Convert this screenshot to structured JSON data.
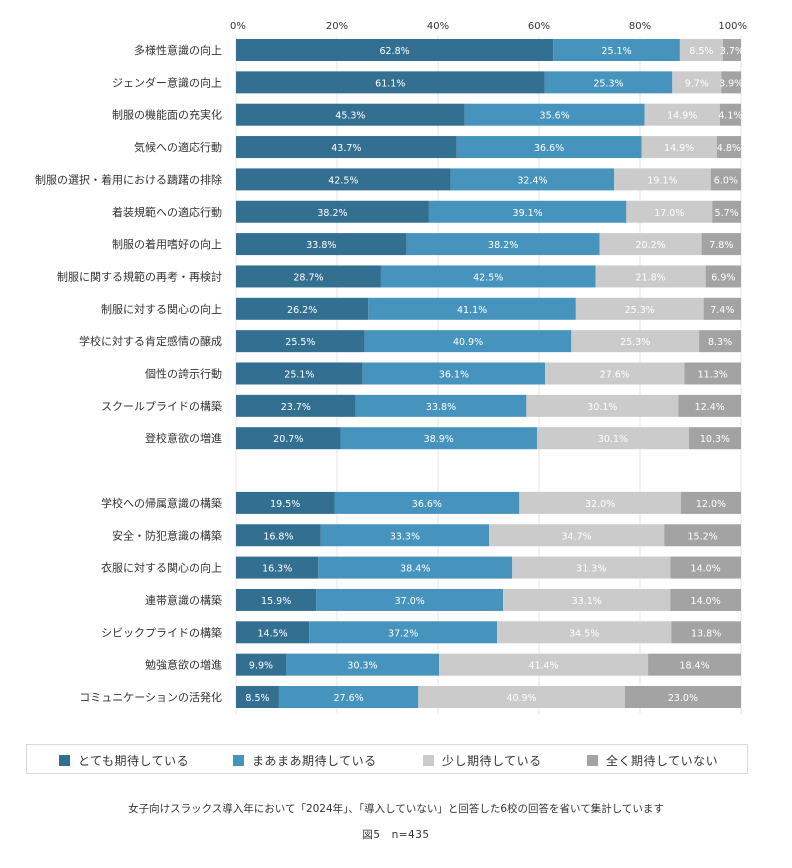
{
  "chart_data": {
    "type": "bar",
    "orientation": "horizontal",
    "stacked": true,
    "xlim": [
      0,
      100
    ],
    "x_ticks": [
      "0%",
      "20%",
      "40%",
      "60%",
      "80%",
      "100%"
    ],
    "x_tick_values": [
      0,
      20,
      40,
      60,
      80,
      100
    ],
    "grid": true,
    "legend_position": "bottom",
    "series": [
      {
        "name": "とても期待している",
        "color": "#336f91"
      },
      {
        "name": "まあまあ期待している",
        "color": "#4694bd"
      },
      {
        "name": "少し期待している",
        "color": "#cbcbcb"
      },
      {
        "name": "全く期待していない",
        "color": "#a3a3a3"
      }
    ],
    "groups": [
      {
        "rows": [
          {
            "category": "多様性意識の向上",
            "values": [
              62.8,
              25.1,
              8.5,
              3.7
            ],
            "labels": [
              "62.8%",
              "25.1%",
              "8.5%",
              "3.7%"
            ]
          },
          {
            "category": "ジェンダー意識の向上",
            "values": [
              61.1,
              25.3,
              9.7,
              3.9
            ],
            "labels": [
              "61.1%",
              "25.3%",
              "9.7%",
              "3.9%"
            ]
          },
          {
            "category": "制服の機能面の充実化",
            "values": [
              45.3,
              35.6,
              14.9,
              4.1
            ],
            "labels": [
              "45.3%",
              "35.6%",
              "14.9%",
              "4.1%"
            ]
          },
          {
            "category": "気候への適応行動",
            "values": [
              43.7,
              36.6,
              14.9,
              4.8
            ],
            "labels": [
              "43.7%",
              "36.6%",
              "14.9%",
              "4.8%"
            ]
          },
          {
            "category": "制服の選択・着用における躊躇の排除",
            "values": [
              42.5,
              32.4,
              19.1,
              6.0
            ],
            "labels": [
              "42.5%",
              "32.4%",
              "19.1%",
              "6.0%"
            ]
          },
          {
            "category": "着装規範への適応行動",
            "values": [
              38.2,
              39.1,
              17.0,
              5.7
            ],
            "labels": [
              "38.2%",
              "39.1%",
              "17.0%",
              "5.7%"
            ]
          },
          {
            "category": "制服の着用嗜好の向上",
            "values": [
              33.8,
              38.2,
              20.2,
              7.8
            ],
            "labels": [
              "33.8%",
              "38.2%",
              "20.2%",
              "7.8%"
            ]
          },
          {
            "category": "制服に関する規範の再考・再検討",
            "values": [
              28.7,
              42.5,
              21.8,
              6.9
            ],
            "labels": [
              "28.7%",
              "42.5%",
              "21.8%",
              "6.9%"
            ]
          },
          {
            "category": "制服に対する関心の向上",
            "values": [
              26.2,
              41.1,
              25.3,
              7.4
            ],
            "labels": [
              "26.2%",
              "41.1%",
              "25.3%",
              "7.4%"
            ]
          },
          {
            "category": "学校に対する肯定感情の醸成",
            "values": [
              25.5,
              40.9,
              25.3,
              8.3
            ],
            "labels": [
              "25.5%",
              "40.9%",
              "25.3%",
              "8.3%"
            ]
          },
          {
            "category": "個性の誇示行動",
            "values": [
              25.1,
              36.1,
              27.6,
              11.3
            ],
            "labels": [
              "25.1%",
              "36.1%",
              "27.6%",
              "11.3%"
            ]
          },
          {
            "category": "スクールプライドの構築",
            "values": [
              23.7,
              33.8,
              30.1,
              12.4
            ],
            "labels": [
              "23.7%",
              "33.8%",
              "30.1%",
              "12.4%"
            ]
          },
          {
            "category": "登校意欲の増進",
            "values": [
              20.7,
              38.9,
              30.1,
              10.3
            ],
            "labels": [
              "20.7%",
              "38.9%",
              "30.1%",
              "10.3%"
            ]
          }
        ]
      },
      {
        "rows": [
          {
            "category": "学校への帰属意識の構築",
            "values": [
              19.5,
              36.6,
              32.0,
              12.0
            ],
            "labels": [
              "19.5%",
              "36.6%",
              "32.0%",
              "12.0%"
            ]
          },
          {
            "category": "安全・防犯意識の構築",
            "values": [
              16.8,
              33.3,
              34.7,
              15.2
            ],
            "labels": [
              "16.8%",
              "33.3%",
              "34.7%",
              "15.2%"
            ]
          },
          {
            "category": "衣服に対する関心の向上",
            "values": [
              16.3,
              38.4,
              31.3,
              14.0
            ],
            "labels": [
              "16.3%",
              "38.4%",
              "31.3%",
              "14.0%"
            ]
          },
          {
            "category": "連帯意識の構築",
            "values": [
              15.9,
              37.0,
              33.1,
              14.0
            ],
            "labels": [
              "15.9%",
              "37.0%",
              "33.1%",
              "14.0%"
            ]
          },
          {
            "category": "シビックプライドの構築",
            "values": [
              14.5,
              37.2,
              34.5,
              13.8
            ],
            "labels": [
              "14.5%",
              "37.2%",
              "34.5%",
              "13.8%"
            ]
          },
          {
            "category": "勉強意欲の増進",
            "values": [
              9.9,
              30.3,
              41.4,
              18.4
            ],
            "labels": [
              "9.9%",
              "30.3%",
              "41.4%",
              "18.4%"
            ]
          },
          {
            "category": "コミュニケーションの活発化",
            "values": [
              8.5,
              27.6,
              40.9,
              23.0
            ],
            "labels": [
              "8.5%",
              "27.6%",
              "40.9%",
              "23.0%"
            ]
          }
        ]
      }
    ]
  },
  "note": "女子向けスラックス導入年において「2024年」、「導入していない」と回答した6校の回答を省いて集計しています",
  "caption": "図5　n=435"
}
